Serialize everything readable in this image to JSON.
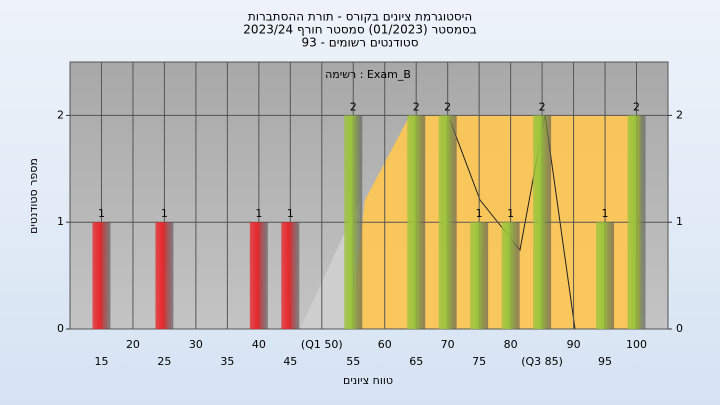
{
  "chart_data": {
    "type": "bar",
    "title": [
      "היסטוגרמת ציונים בקורס - תורת ההסתברות",
      "בסמסטר (01/2023) סמסטר חורף 2023/24",
      "סטודנטים רשומים - 93"
    ],
    "annotation": "רשימה : Exam_B",
    "x_label": "טווח ציונים",
    "y_label": "מספר סטודנטים",
    "x": [
      15,
      25,
      40,
      45,
      55,
      65,
      70,
      75,
      80,
      85,
      95,
      100
    ],
    "values": [
      1,
      1,
      1,
      1,
      2,
      2,
      2,
      1,
      1,
      2,
      1,
      2
    ],
    "colors": [
      "#e8282c",
      "#e8282c",
      "#e8282c",
      "#e8282c",
      "#9cc43c",
      "#9cc43c",
      "#9cc43c",
      "#9cc43c",
      "#9cc43c",
      "#9cc43c",
      "#9cc43c",
      "#9cc43c"
    ],
    "xlim": [
      10,
      105
    ],
    "xticks": [
      15,
      20,
      25,
      30,
      35,
      40,
      45,
      {
        "value": 50,
        "label": "(Q1 50)"
      },
      55,
      60,
      65,
      70,
      75,
      80,
      {
        "value": 85,
        "label": "(Q3 85)"
      },
      90,
      95,
      100
    ],
    "ylim": [
      0,
      2.5
    ],
    "yticks": [
      0,
      1,
      2
    ],
    "y2ticks": [
      0,
      1,
      2
    ],
    "grid": true
  }
}
